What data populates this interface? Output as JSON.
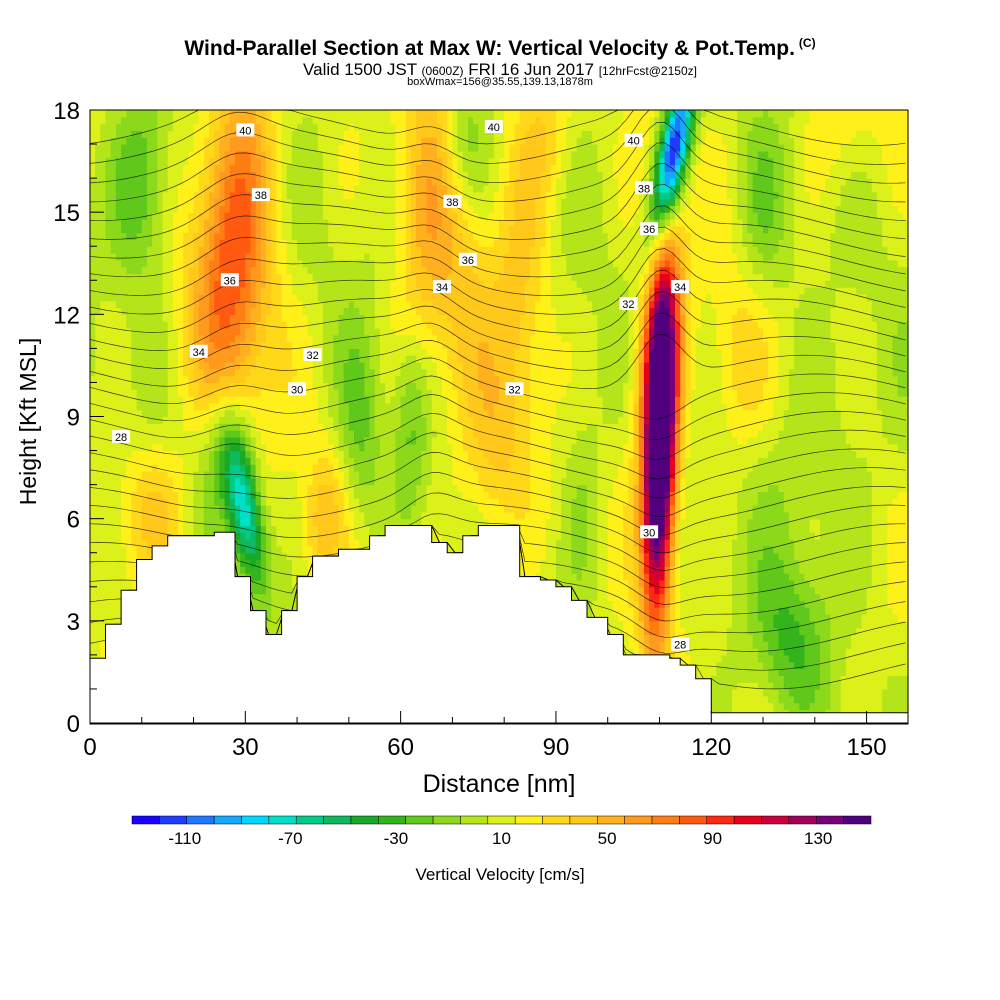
{
  "chart_data": {
    "type": "heatmap",
    "title": "Wind-Parallel Section at Max W: Vertical Velocity & Pot.Temp.",
    "title_tag": "(C)",
    "subtitle_parts": {
      "valid": "Valid 1500 JST",
      "utc": "(0600Z)",
      "date": "FRI 16 Jun 2017",
      "fcst": "[12hrFcst@2150z]"
    },
    "subtitle2": "boxWmax=156@35.55,139.13,1878m",
    "xlabel": "Distance [nm]",
    "ylabel": "Height [Kft MSL]",
    "xlim": [
      0,
      158
    ],
    "ylim": [
      0,
      18
    ],
    "x_ticks": [
      0,
      30,
      60,
      90,
      120,
      150
    ],
    "y_ticks": [
      0,
      3,
      6,
      9,
      12,
      15,
      18
    ],
    "colorbar": {
      "label": "Vertical Velocity [cm/s]",
      "tick_labels": [
        -110,
        -70,
        -30,
        10,
        50,
        90,
        130
      ],
      "min": -130,
      "max": 150,
      "colors": [
        "#1a00ff",
        "#1e3cff",
        "#1e78ff",
        "#14a8ff",
        "#00d8ff",
        "#00e0c8",
        "#00cc88",
        "#10b860",
        "#1aa828",
        "#34b41c",
        "#60c81a",
        "#8cd81a",
        "#b4e41a",
        "#dcf01a",
        "#fff01a",
        "#ffd81a",
        "#ffc81a",
        "#ffb01e",
        "#ff9a1e",
        "#ff7e14",
        "#ff5a10",
        "#ff2814",
        "#e6001e",
        "#c8003c",
        "#a0005a",
        "#780078",
        "#50007f"
      ]
    },
    "max_w_cms": 156,
    "max_w_location": {
      "x_nm": 110,
      "height_kft": 7.5
    },
    "theta_contours_c": [
      28,
      30,
      32,
      34,
      36,
      38,
      40
    ],
    "contour_labels": [
      {
        "text": "40",
        "x": 30,
        "y": 17.4
      },
      {
        "text": "38",
        "x": 33,
        "y": 15.5
      },
      {
        "text": "36",
        "x": 27,
        "y": 13.0
      },
      {
        "text": "34",
        "x": 21,
        "y": 10.9
      },
      {
        "text": "28",
        "x": 6,
        "y": 8.4
      },
      {
        "text": "40",
        "x": 78,
        "y": 17.5
      },
      {
        "text": "38",
        "x": 70,
        "y": 15.3
      },
      {
        "text": "36",
        "x": 73,
        "y": 13.6
      },
      {
        "text": "34",
        "x": 68,
        "y": 12.8
      },
      {
        "text": "32",
        "x": 43,
        "y": 10.8
      },
      {
        "text": "30",
        "x": 40,
        "y": 9.8
      },
      {
        "text": "32",
        "x": 82,
        "y": 9.8
      },
      {
        "text": "40",
        "x": 105,
        "y": 17.1
      },
      {
        "text": "38",
        "x": 107,
        "y": 15.7
      },
      {
        "text": "36",
        "x": 108,
        "y": 14.5
      },
      {
        "text": "32",
        "x": 104,
        "y": 12.3
      },
      {
        "text": "34",
        "x": 114,
        "y": 12.8
      },
      {
        "text": "30",
        "x": 108,
        "y": 5.6
      },
      {
        "text": "28",
        "x": 114,
        "y": 2.3
      }
    ],
    "terrain_kft": [
      [
        0,
        1.9
      ],
      [
        3,
        2.9
      ],
      [
        6,
        3.9
      ],
      [
        9,
        4.8
      ],
      [
        12,
        5.2
      ],
      [
        15,
        5.5
      ],
      [
        24,
        5.6
      ],
      [
        28,
        4.3
      ],
      [
        31,
        3.3
      ],
      [
        34,
        2.6
      ],
      [
        37,
        3.3
      ],
      [
        40,
        4.3
      ],
      [
        43,
        4.9
      ],
      [
        48,
        5.1
      ],
      [
        54,
        5.5
      ],
      [
        57,
        5.8
      ],
      [
        63,
        5.8
      ],
      [
        66,
        5.3
      ],
      [
        69,
        5.0
      ],
      [
        72,
        5.5
      ],
      [
        75,
        5.8
      ],
      [
        80,
        5.8
      ],
      [
        83,
        4.3
      ],
      [
        87,
        4.2
      ],
      [
        90,
        4.0
      ],
      [
        93,
        3.6
      ],
      [
        96,
        3.1
      ],
      [
        100,
        2.6
      ],
      [
        103,
        2.0
      ],
      [
        112,
        1.9
      ],
      [
        114,
        1.7
      ],
      [
        117,
        1.3
      ],
      [
        120,
        0.3
      ],
      [
        158,
        0.3
      ]
    ],
    "w_field_kernels": [
      {
        "x": 28,
        "y": 15.5,
        "w": 55,
        "sx": 5,
        "sy": 3.5,
        "tilt": 0.5
      },
      {
        "x": 28,
        "y": 11.5,
        "w": 35,
        "sx": 6,
        "sy": 3,
        "tilt": 0.3
      },
      {
        "x": 65,
        "y": 15,
        "w": 35,
        "sx": 4,
        "sy": 4,
        "tilt": 0.3
      },
      {
        "x": 72,
        "y": 12,
        "w": 25,
        "sx": 4,
        "sy": 3,
        "tilt": 0
      },
      {
        "x": 62,
        "y": 9,
        "w": -30,
        "sx": 2.5,
        "sy": 2,
        "tilt": 0
      },
      {
        "x": 83,
        "y": 13,
        "w": 28,
        "sx": 4,
        "sy": 3.5,
        "tilt": 0
      },
      {
        "x": 110,
        "y": 8,
        "w": 180,
        "sx": 2.2,
        "sy": 3.5,
        "tilt": 0.15
      },
      {
        "x": 110,
        "y": 12,
        "w": 60,
        "sx": 3.5,
        "sy": 3,
        "tilt": 0.2
      },
      {
        "x": 113,
        "y": 17,
        "w": -115,
        "sx": 2,
        "sy": 1.5,
        "tilt": 1.2
      },
      {
        "x": 110,
        "y": 15,
        "w": -50,
        "sx": 2.5,
        "sy": 2,
        "tilt": 1
      },
      {
        "x": 30,
        "y": 6.2,
        "w": -85,
        "sx": 2.3,
        "sy": 1.6,
        "tilt": -1
      },
      {
        "x": 26,
        "y": 8,
        "w": -35,
        "sx": 4,
        "sy": 1.5,
        "tilt": 0
      },
      {
        "x": 12,
        "y": 6.2,
        "w": 30,
        "sx": 5,
        "sy": 1.5,
        "tilt": 0
      },
      {
        "x": 45,
        "y": 6,
        "w": 30,
        "sx": 3,
        "sy": 1.5,
        "tilt": 0.4
      },
      {
        "x": 78,
        "y": 7.5,
        "w": 25,
        "sx": 4,
        "sy": 2,
        "tilt": 0
      },
      {
        "x": 10,
        "y": 16,
        "w": -40,
        "sx": 4,
        "sy": 2,
        "tilt": 0
      },
      {
        "x": 72,
        "y": 17,
        "w": -25,
        "sx": 3,
        "sy": 1.5,
        "tilt": 0
      },
      {
        "x": 125,
        "y": 10.5,
        "w": 25,
        "sx": 4,
        "sy": 2,
        "tilt": 0
      },
      {
        "x": 135,
        "y": 2.5,
        "w": -30,
        "sx": 5,
        "sy": 1.5,
        "tilt": 0
      },
      {
        "x": 145,
        "y": 17.5,
        "w": 18,
        "sx": 6,
        "sy": 1.5,
        "tilt": 0
      },
      {
        "x": 130,
        "y": 15,
        "w": -22,
        "sx": 4,
        "sy": 2,
        "tilt": 0
      },
      {
        "x": 88,
        "y": 17.5,
        "w": 25,
        "sx": 4,
        "sy": 1.5,
        "tilt": 0
      },
      {
        "x": 52,
        "y": 8.5,
        "w": -25,
        "sx": 3,
        "sy": 2,
        "tilt": 0
      },
      {
        "x": 95,
        "y": 7,
        "w": -15,
        "sx": 3,
        "sy": 2.5,
        "tilt": 0
      },
      {
        "x": 140,
        "y": 7.5,
        "w": -15,
        "sx": 8,
        "sy": 2.5,
        "tilt": 0
      }
    ]
  }
}
